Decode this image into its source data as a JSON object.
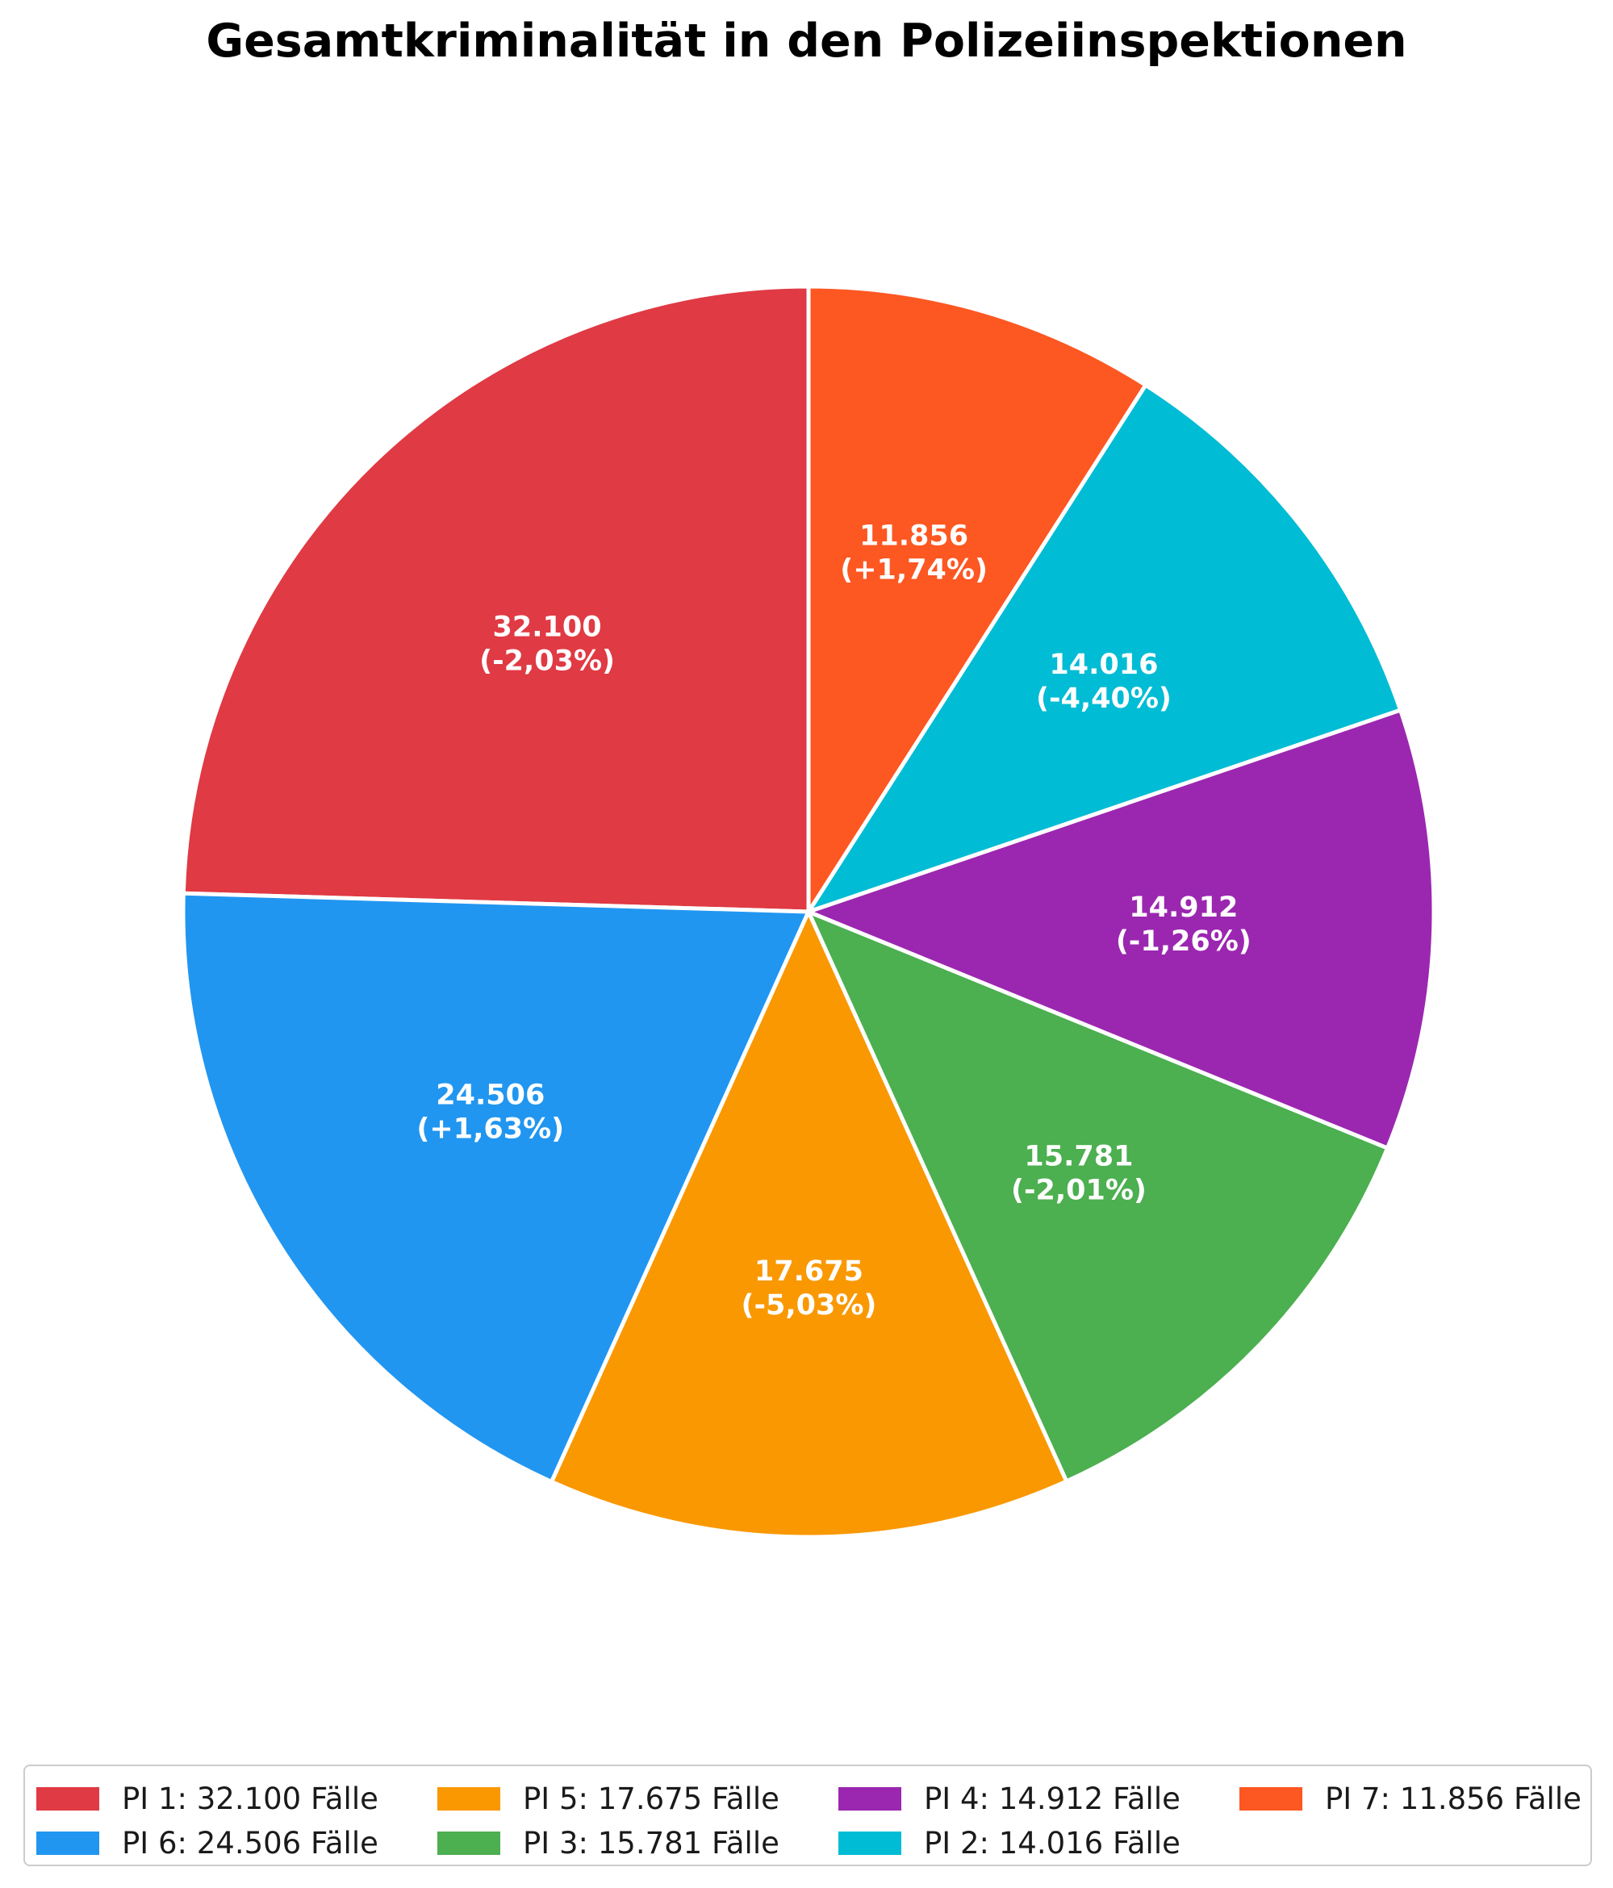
{
  "chart_data": {
    "type": "pie",
    "title": "Gesamtkriminalität in den Polizeiinspektionen",
    "start_angle_deg": 90,
    "direction": "counterclockwise",
    "slices": [
      {
        "name": "PI 1",
        "value": 32100,
        "label_value": "32.100",
        "label_change": "(-2,03%)",
        "color": "#E03A44",
        "legend": "PI 1: 32.100 Fälle"
      },
      {
        "name": "PI 6",
        "value": 24506,
        "label_value": "24.506",
        "label_change": "(+1,63%)",
        "color": "#2196F0",
        "legend": "PI 6: 24.506 Fälle"
      },
      {
        "name": "PI 5",
        "value": 17675,
        "label_value": "17.675",
        "label_change": "(-5,03%)",
        "color": "#F99800",
        "legend": "PI 5: 17.675 Fälle"
      },
      {
        "name": "PI 3",
        "value": 15781,
        "label_value": "15.781",
        "label_change": "(-2,01%)",
        "color": "#4CAF50",
        "legend": "PI 3: 15.781 Fälle"
      },
      {
        "name": "PI 4",
        "value": 14912,
        "label_value": "14.912",
        "label_change": "(-1,26%)",
        "color": "#9B27B0",
        "legend": "PI 4: 14.912 Fälle"
      },
      {
        "name": "PI 2",
        "value": 14016,
        "label_value": "14.016",
        "label_change": "(-4,40%)",
        "color": "#00BCD4",
        "legend": "PI 2: 14.016 Fälle"
      },
      {
        "name": "PI 7",
        "value": 11856,
        "label_value": "11.856",
        "label_change": "(+1,74%)",
        "color": "#FD5722",
        "legend": "PI 7: 11.856 Fälle"
      }
    ],
    "legend_position": "bottom"
  }
}
